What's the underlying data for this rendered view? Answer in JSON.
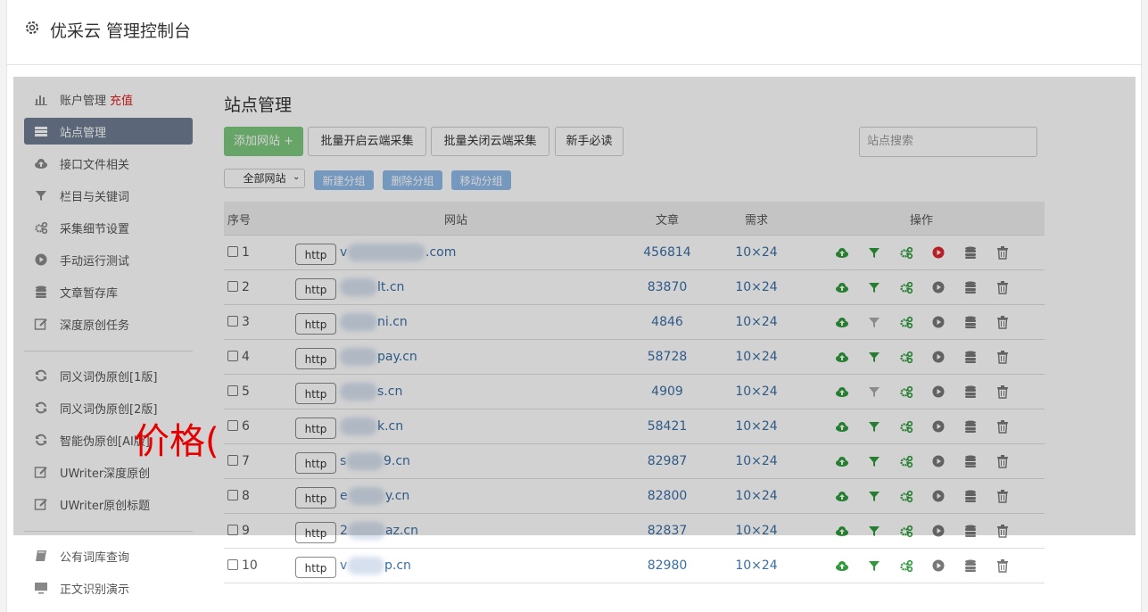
{
  "header": {
    "title": "优采云 管理控制台"
  },
  "sidebar": {
    "groups": [
      [
        {
          "label": "账户管理",
          "badge": "充值",
          "icon": "chart"
        },
        {
          "label": "站点管理",
          "active": true,
          "icon": "list"
        },
        {
          "label": "接口文件相关",
          "icon": "cloud"
        },
        {
          "label": "栏目与关键词",
          "icon": "filter"
        },
        {
          "label": "采集细节设置",
          "icon": "gears"
        },
        {
          "label": "手动运行测试",
          "icon": "play"
        },
        {
          "label": "文章暂存库",
          "icon": "db"
        },
        {
          "label": "深度原创任务",
          "icon": "edit"
        }
      ],
      [
        {
          "label": "同义词伪原创[1版]",
          "icon": "refresh"
        },
        {
          "label": "同义词伪原创[2版]",
          "icon": "refresh"
        },
        {
          "label": "智能伪原创[AI版]",
          "icon": "refresh"
        },
        {
          "label": "UWriter深度原创",
          "icon": "edit"
        },
        {
          "label": "UWriter原创标题",
          "icon": "edit"
        }
      ],
      [
        {
          "label": "公有词库查询",
          "icon": "book"
        },
        {
          "label": "正文识别演示",
          "icon": "monitor"
        }
      ]
    ]
  },
  "main": {
    "title": "站点管理",
    "buttons": [
      "添加网站 +",
      "批量开启云端采集",
      "批量关闭云端采集",
      "新手必读"
    ],
    "search_placeholder": "站点搜索",
    "filter_select": "全部网站",
    "group_buttons": [
      "新建分组",
      "删除分组",
      "移动分组"
    ],
    "table": {
      "headers": [
        "序号",
        "网站",
        "文章",
        "需求",
        "操作"
      ],
      "rows": [
        {
          "number": 1,
          "protocol": "http",
          "site_start": "v",
          "site_end": ".com",
          "articles": 456814,
          "demand": "10×24",
          "filter_enabled": true,
          "running": true
        },
        {
          "number": 2,
          "protocol": "http",
          "site_end": "lt.cn",
          "articles": 83870,
          "demand": "10×24",
          "filter_enabled": true,
          "running": false
        },
        {
          "number": 3,
          "protocol": "http",
          "site_end": "ni.cn",
          "articles": 4846,
          "demand": "10×24",
          "filter_enabled": false,
          "running": false
        },
        {
          "number": 4,
          "protocol": "http",
          "site_end": "pay.cn",
          "articles": 58728,
          "demand": "10×24",
          "filter_enabled": true,
          "running": false
        },
        {
          "number": 5,
          "protocol": "http",
          "site_end": "s.cn",
          "articles": 4909,
          "demand": "10×24",
          "filter_enabled": false,
          "running": false
        },
        {
          "number": 6,
          "protocol": "http",
          "site_end": "k.cn",
          "articles": 58421,
          "demand": "10×24",
          "filter_enabled": true,
          "running": false
        },
        {
          "number": 7,
          "protocol": "http",
          "site_start": "s",
          "site_end": "9.cn",
          "articles": 82987,
          "demand": "10×24",
          "filter_enabled": true,
          "running": false
        },
        {
          "number": 8,
          "protocol": "http",
          "site_start": "e",
          "site_end": "y.cn",
          "articles": 82800,
          "demand": "10×24",
          "filter_enabled": true,
          "running": false
        },
        {
          "number": 9,
          "protocol": "http",
          "site_start": "2",
          "site_end": "az.cn",
          "articles": 82837,
          "demand": "10×24",
          "filter_enabled": true,
          "running": false
        },
        {
          "number": 10,
          "protocol": "http",
          "site_start": "v",
          "site_end": "p.cn",
          "articles": 82980,
          "demand": "10×24",
          "filter_enabled": true,
          "running": false
        }
      ]
    }
  },
  "overlay_text": "价格("
}
